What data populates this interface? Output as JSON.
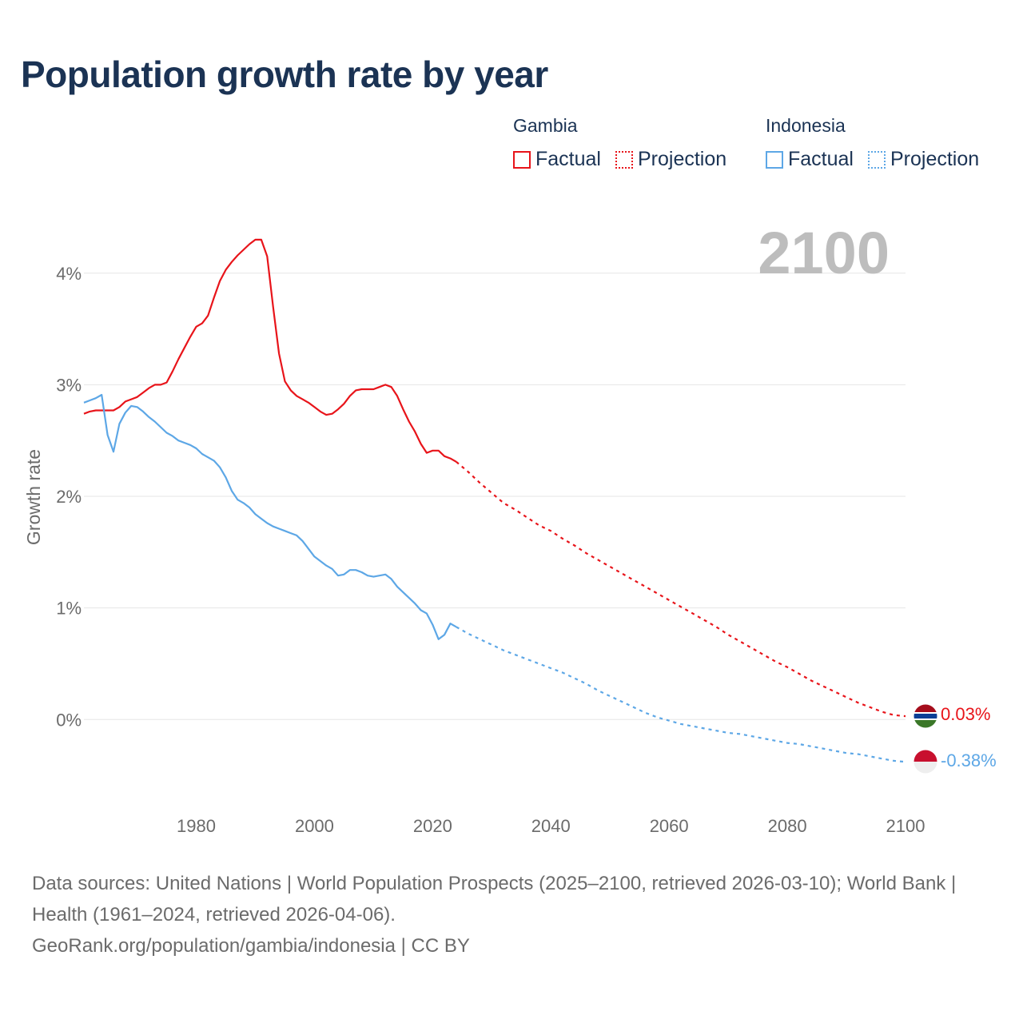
{
  "colors": {
    "title": "#1b3354",
    "gambia": "#e8141a",
    "indonesia": "#5da7e6",
    "axis_text": "#6b6b6b",
    "grid": "#e6e6e6",
    "year_watermark": "#bdbdbd"
  },
  "chart_data": {
    "type": "line",
    "title": "Population growth rate by year",
    "xlabel": "",
    "ylabel": "Growth rate",
    "xlim": [
      1961,
      2100
    ],
    "ylim": [
      -0.75,
      4.55
    ],
    "x_ticks": [
      1980,
      2000,
      2020,
      2040,
      2060,
      2080,
      2100
    ],
    "y_ticks": [
      {
        "value": 0,
        "label": "0%"
      },
      {
        "value": 1,
        "label": "1%"
      },
      {
        "value": 2,
        "label": "2%"
      },
      {
        "value": 3,
        "label": "3%"
      },
      {
        "value": 4,
        "label": "4%"
      }
    ],
    "grid": true,
    "current_year": "2100",
    "legend": {
      "placement": "top-right",
      "groups": [
        {
          "name": "Gambia",
          "factual_label": "Factual",
          "projection_label": "Projection"
        },
        {
          "name": "Indonesia",
          "factual_label": "Factual",
          "projection_label": "Projection"
        }
      ]
    },
    "series": [
      {
        "name": "Gambia",
        "end_label": "0.03%",
        "factual": {
          "x": [
            1961,
            1962,
            1963,
            1964,
            1965,
            1966,
            1967,
            1968,
            1969,
            1970,
            1971,
            1972,
            1973,
            1974,
            1975,
            1976,
            1977,
            1978,
            1979,
            1980,
            1981,
            1982,
            1983,
            1984,
            1985,
            1986,
            1987,
            1988,
            1989,
            1990,
            1991,
            1992,
            1993,
            1994,
            1995,
            1996,
            1997,
            1998,
            1999,
            2000,
            2001,
            2002,
            2003,
            2004,
            2005,
            2006,
            2007,
            2008,
            2009,
            2010,
            2011,
            2012,
            2013,
            2014,
            2015,
            2016,
            2017,
            2018,
            2019,
            2020,
            2021,
            2022,
            2023,
            2024
          ],
          "y": [
            2.74,
            2.76,
            2.77,
            2.77,
            2.77,
            2.77,
            2.8,
            2.85,
            2.87,
            2.89,
            2.93,
            2.97,
            3.0,
            3.0,
            3.02,
            3.12,
            3.23,
            3.33,
            3.43,
            3.52,
            3.55,
            3.62,
            3.78,
            3.93,
            4.03,
            4.1,
            4.16,
            4.21,
            4.26,
            4.3,
            4.3,
            4.15,
            3.7,
            3.28,
            3.03,
            2.95,
            2.9,
            2.87,
            2.84,
            2.8,
            2.76,
            2.73,
            2.74,
            2.78,
            2.83,
            2.9,
            2.95,
            2.96,
            2.96,
            2.96,
            2.98,
            3.0,
            2.98,
            2.9,
            2.78,
            2.67,
            2.58,
            2.47,
            2.39,
            2.41,
            2.41,
            2.36,
            2.34,
            2.31
          ]
        },
        "projection": {
          "x": [
            2024,
            2026,
            2028,
            2030,
            2032,
            2034,
            2036,
            2038,
            2040,
            2042,
            2044,
            2046,
            2048,
            2050,
            2052,
            2054,
            2056,
            2058,
            2060,
            2062,
            2064,
            2066,
            2068,
            2070,
            2072,
            2074,
            2076,
            2078,
            2080,
            2082,
            2084,
            2086,
            2088,
            2090,
            2092,
            2094,
            2096,
            2098,
            2100
          ],
          "y": [
            2.31,
            2.22,
            2.12,
            2.03,
            1.94,
            1.88,
            1.81,
            1.74,
            1.69,
            1.62,
            1.56,
            1.49,
            1.43,
            1.37,
            1.31,
            1.25,
            1.19,
            1.13,
            1.07,
            1.01,
            0.95,
            0.89,
            0.83,
            0.76,
            0.7,
            0.64,
            0.58,
            0.52,
            0.47,
            0.41,
            0.35,
            0.3,
            0.25,
            0.2,
            0.15,
            0.11,
            0.07,
            0.04,
            0.03
          ]
        }
      },
      {
        "name": "Indonesia",
        "end_label": "-0.38%",
        "factual": {
          "x": [
            1961,
            1962,
            1963,
            1964,
            1965,
            1966,
            1967,
            1968,
            1969,
            1970,
            1971,
            1972,
            1973,
            1974,
            1975,
            1976,
            1977,
            1978,
            1979,
            1980,
            1981,
            1982,
            1983,
            1984,
            1985,
            1986,
            1987,
            1988,
            1989,
            1990,
            1991,
            1992,
            1993,
            1994,
            1995,
            1996,
            1997,
            1998,
            1999,
            2000,
            2001,
            2002,
            2003,
            2004,
            2005,
            2006,
            2007,
            2008,
            2009,
            2010,
            2011,
            2012,
            2013,
            2014,
            2015,
            2016,
            2017,
            2018,
            2019,
            2020,
            2021,
            2022,
            2023,
            2024
          ],
          "y": [
            2.84,
            2.86,
            2.88,
            2.91,
            2.55,
            2.4,
            2.65,
            2.75,
            2.81,
            2.8,
            2.76,
            2.71,
            2.67,
            2.62,
            2.57,
            2.54,
            2.5,
            2.48,
            2.46,
            2.43,
            2.38,
            2.35,
            2.32,
            2.26,
            2.17,
            2.05,
            1.97,
            1.94,
            1.9,
            1.84,
            1.8,
            1.76,
            1.73,
            1.71,
            1.69,
            1.67,
            1.65,
            1.6,
            1.53,
            1.46,
            1.42,
            1.38,
            1.35,
            1.29,
            1.3,
            1.34,
            1.34,
            1.32,
            1.29,
            1.28,
            1.29,
            1.3,
            1.26,
            1.19,
            1.14,
            1.09,
            1.04,
            0.98,
            0.95,
            0.85,
            0.72,
            0.76,
            0.86,
            0.83
          ]
        },
        "projection": {
          "x": [
            2024,
            2026,
            2028,
            2030,
            2032,
            2034,
            2036,
            2038,
            2040,
            2042,
            2044,
            2046,
            2048,
            2050,
            2052,
            2054,
            2056,
            2058,
            2060,
            2062,
            2064,
            2066,
            2068,
            2070,
            2072,
            2074,
            2076,
            2078,
            2080,
            2082,
            2084,
            2086,
            2088,
            2090,
            2092,
            2094,
            2096,
            2098,
            2100
          ],
          "y": [
            0.83,
            0.77,
            0.72,
            0.67,
            0.62,
            0.58,
            0.54,
            0.5,
            0.46,
            0.42,
            0.37,
            0.32,
            0.26,
            0.21,
            0.16,
            0.11,
            0.06,
            0.02,
            -0.01,
            -0.04,
            -0.06,
            -0.08,
            -0.1,
            -0.12,
            -0.13,
            -0.15,
            -0.17,
            -0.19,
            -0.21,
            -0.22,
            -0.24,
            -0.26,
            -0.28,
            -0.3,
            -0.31,
            -0.33,
            -0.35,
            -0.37,
            -0.38
          ]
        }
      }
    ]
  },
  "footer": {
    "sources": "Data sources: United Nations | World Population Prospects (2025–2100, retrieved 2026-03-10); World Bank | Health (1961–2024, retrieved 2026-04-06).",
    "credit": "GeoRank.org/population/gambia/indonesia | CC BY"
  }
}
